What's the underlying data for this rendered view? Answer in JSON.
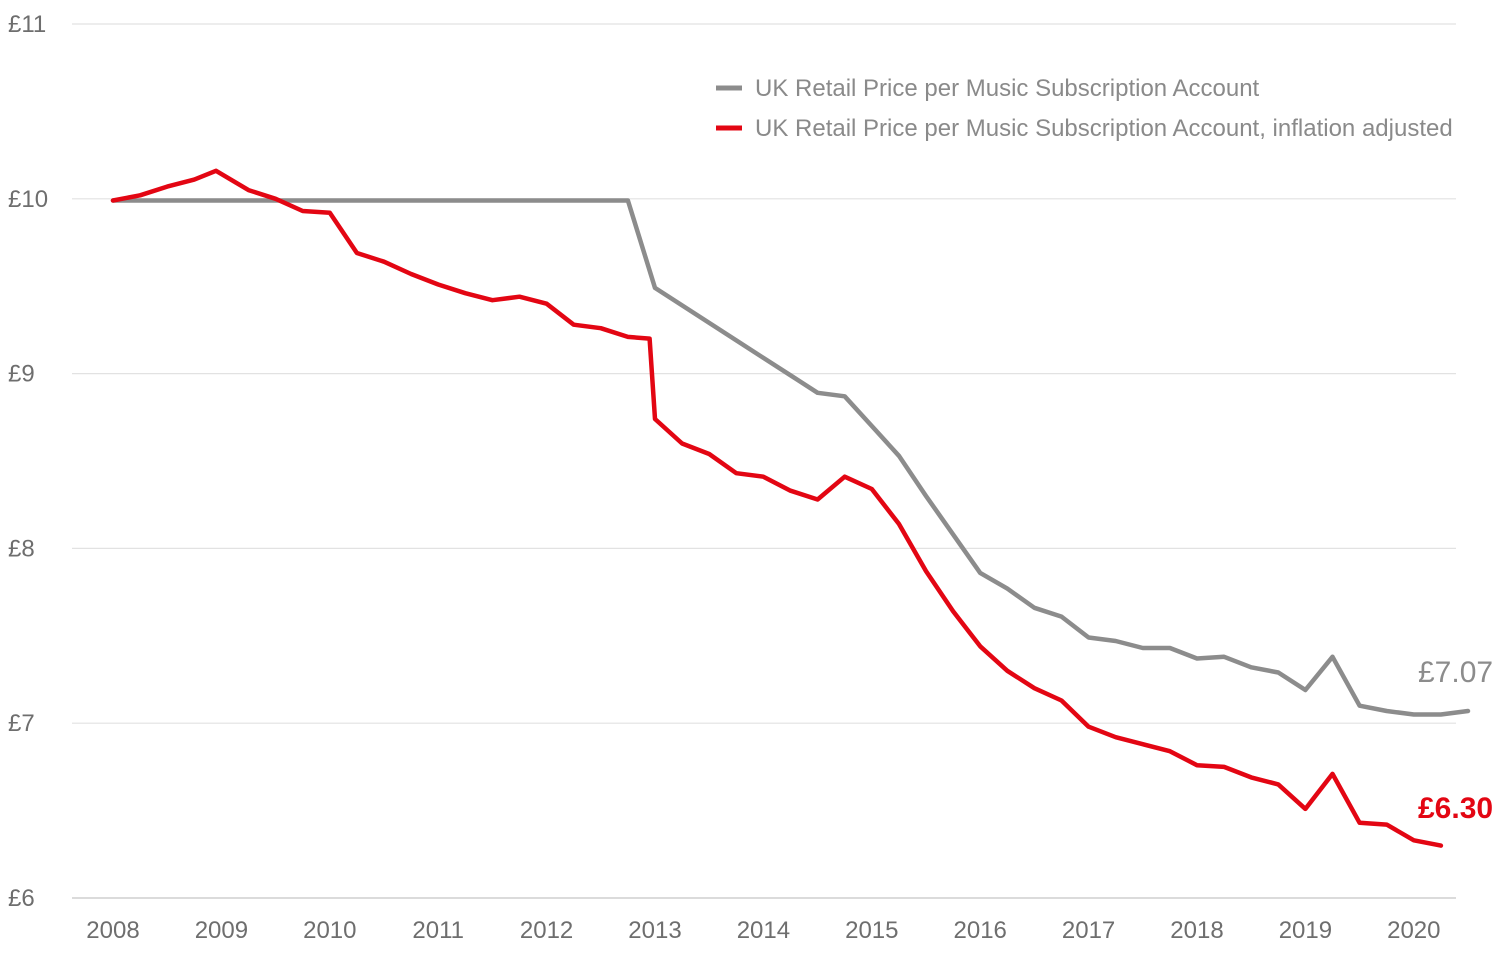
{
  "chart_data": {
    "type": "line",
    "title": "",
    "xlabel": "",
    "ylabel": "",
    "ylim": [
      6,
      11
    ],
    "xlim": [
      2008,
      2020.75
    ],
    "y_ticks": [
      6,
      7,
      8,
      9,
      10,
      11
    ],
    "y_tick_labels": [
      "£6",
      "£7",
      "£8",
      "£9",
      "£10",
      "£11"
    ],
    "x_ticks": [
      2008,
      2009,
      2010,
      2011,
      2012,
      2013,
      2014,
      2015,
      2016,
      2017,
      2018,
      2019,
      2020
    ],
    "x_tick_labels": [
      "2008",
      "2009",
      "2010",
      "2011",
      "2012",
      "2013",
      "2014",
      "2015",
      "2016",
      "2017",
      "2018",
      "2019",
      "2020"
    ],
    "grid": "horizontal",
    "legend_position": "top-right",
    "series": [
      {
        "name": "UK Retail Price per Music Subscription Account",
        "color": "#8c8c8c",
        "end_label": "£7.07",
        "points": [
          [
            2008.0,
            9.99
          ],
          [
            2008.25,
            9.99
          ],
          [
            2008.5,
            9.99
          ],
          [
            2008.75,
            9.99
          ],
          [
            2009.0,
            9.99
          ],
          [
            2009.25,
            9.99
          ],
          [
            2009.5,
            9.99
          ],
          [
            2009.75,
            9.99
          ],
          [
            2010.0,
            9.99
          ],
          [
            2010.25,
            9.99
          ],
          [
            2010.5,
            9.99
          ],
          [
            2010.75,
            9.99
          ],
          [
            2011.0,
            9.99
          ],
          [
            2011.25,
            9.99
          ],
          [
            2011.5,
            9.99
          ],
          [
            2011.75,
            9.99
          ],
          [
            2012.0,
            9.99
          ],
          [
            2012.25,
            9.99
          ],
          [
            2012.5,
            9.99
          ],
          [
            2012.75,
            9.99
          ],
          [
            2013.0,
            9.49
          ],
          [
            2013.25,
            9.39
          ],
          [
            2013.5,
            9.29
          ],
          [
            2013.75,
            9.19
          ],
          [
            2014.0,
            9.09
          ],
          [
            2014.25,
            8.99
          ],
          [
            2014.5,
            8.89
          ],
          [
            2014.75,
            8.87
          ],
          [
            2015.0,
            8.7
          ],
          [
            2015.25,
            8.53
          ],
          [
            2015.5,
            8.3
          ],
          [
            2015.75,
            8.08
          ],
          [
            2016.0,
            7.86
          ],
          [
            2016.25,
            7.77
          ],
          [
            2016.5,
            7.66
          ],
          [
            2016.75,
            7.61
          ],
          [
            2017.0,
            7.49
          ],
          [
            2017.25,
            7.47
          ],
          [
            2017.5,
            7.43
          ],
          [
            2017.75,
            7.43
          ],
          [
            2018.0,
            7.37
          ],
          [
            2018.25,
            7.38
          ],
          [
            2018.5,
            7.32
          ],
          [
            2018.75,
            7.29
          ],
          [
            2019.0,
            7.19
          ],
          [
            2019.25,
            7.38
          ],
          [
            2019.5,
            7.1
          ],
          [
            2019.75,
            7.07
          ],
          [
            2020.0,
            7.05
          ],
          [
            2020.25,
            7.05
          ],
          [
            2020.5,
            7.07
          ]
        ]
      },
      {
        "name": "UK Retail Price per Music Subscription Account, inflation adjusted",
        "color": "#e30613",
        "end_label": "£6.30",
        "points": [
          [
            2008.0,
            9.99
          ],
          [
            2008.25,
            10.02
          ],
          [
            2008.5,
            10.07
          ],
          [
            2008.75,
            10.11
          ],
          [
            2008.95,
            10.16
          ],
          [
            2009.25,
            10.05
          ],
          [
            2009.5,
            10.0
          ],
          [
            2009.75,
            9.93
          ],
          [
            2010.0,
            9.92
          ],
          [
            2010.25,
            9.69
          ],
          [
            2010.5,
            9.64
          ],
          [
            2010.75,
            9.57
          ],
          [
            2011.0,
            9.51
          ],
          [
            2011.25,
            9.46
          ],
          [
            2011.5,
            9.42
          ],
          [
            2011.75,
            9.44
          ],
          [
            2012.0,
            9.4
          ],
          [
            2012.25,
            9.28
          ],
          [
            2012.5,
            9.26
          ],
          [
            2012.75,
            9.21
          ],
          [
            2012.95,
            9.2
          ],
          [
            2013.0,
            8.74
          ],
          [
            2013.25,
            8.6
          ],
          [
            2013.5,
            8.54
          ],
          [
            2013.75,
            8.43
          ],
          [
            2014.0,
            8.41
          ],
          [
            2014.25,
            8.33
          ],
          [
            2014.5,
            8.28
          ],
          [
            2014.75,
            8.41
          ],
          [
            2015.0,
            8.34
          ],
          [
            2015.25,
            8.14
          ],
          [
            2015.5,
            7.87
          ],
          [
            2015.75,
            7.64
          ],
          [
            2016.0,
            7.44
          ],
          [
            2016.25,
            7.3
          ],
          [
            2016.5,
            7.2
          ],
          [
            2016.75,
            7.13
          ],
          [
            2017.0,
            6.98
          ],
          [
            2017.25,
            6.92
          ],
          [
            2017.5,
            6.88
          ],
          [
            2017.75,
            6.84
          ],
          [
            2018.0,
            6.76
          ],
          [
            2018.25,
            6.75
          ],
          [
            2018.5,
            6.69
          ],
          [
            2018.75,
            6.65
          ],
          [
            2019.0,
            6.51
          ],
          [
            2019.25,
            6.71
          ],
          [
            2019.5,
            6.43
          ],
          [
            2019.75,
            6.42
          ],
          [
            2020.0,
            6.33
          ],
          [
            2020.25,
            6.3
          ]
        ]
      }
    ]
  }
}
